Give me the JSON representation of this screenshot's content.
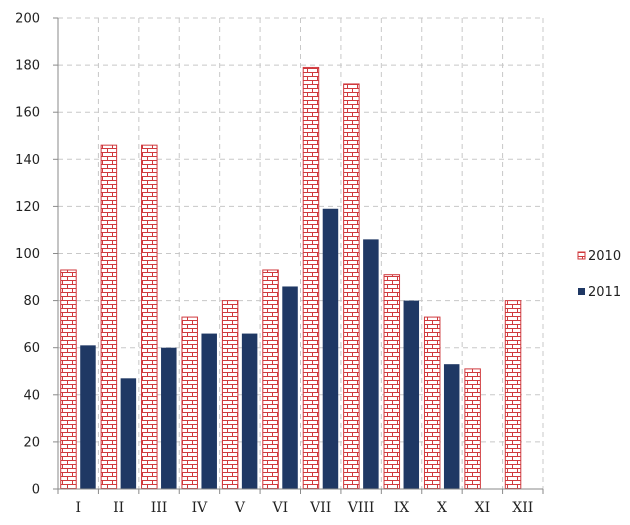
{
  "chart_data": {
    "type": "bar",
    "categories": [
      "I",
      "II",
      "III",
      "IV",
      "V",
      "VI",
      "VII",
      "VIII",
      "IX",
      "X",
      "XI",
      "XII"
    ],
    "series": [
      {
        "name": "2010",
        "pattern": "brick",
        "color": "#d0393d",
        "values": [
          93,
          146,
          146,
          73,
          80,
          93,
          179,
          172,
          91,
          73,
          51,
          80
        ]
      },
      {
        "name": "2011",
        "pattern": "solid",
        "color": "#1f3864",
        "values": [
          61,
          47,
          60,
          66,
          66,
          86,
          119,
          106,
          80,
          53,
          null,
          null
        ]
      }
    ],
    "y_ticks": [
      "0",
      "20",
      "40",
      "60",
      "80",
      "100",
      "120",
      "140",
      "160",
      "180",
      "200"
    ],
    "ylim": [
      0,
      200
    ],
    "xlabel": "",
    "ylabel": "",
    "title": "",
    "grid": true,
    "grid_style": "dashed",
    "legend_position": "right"
  }
}
